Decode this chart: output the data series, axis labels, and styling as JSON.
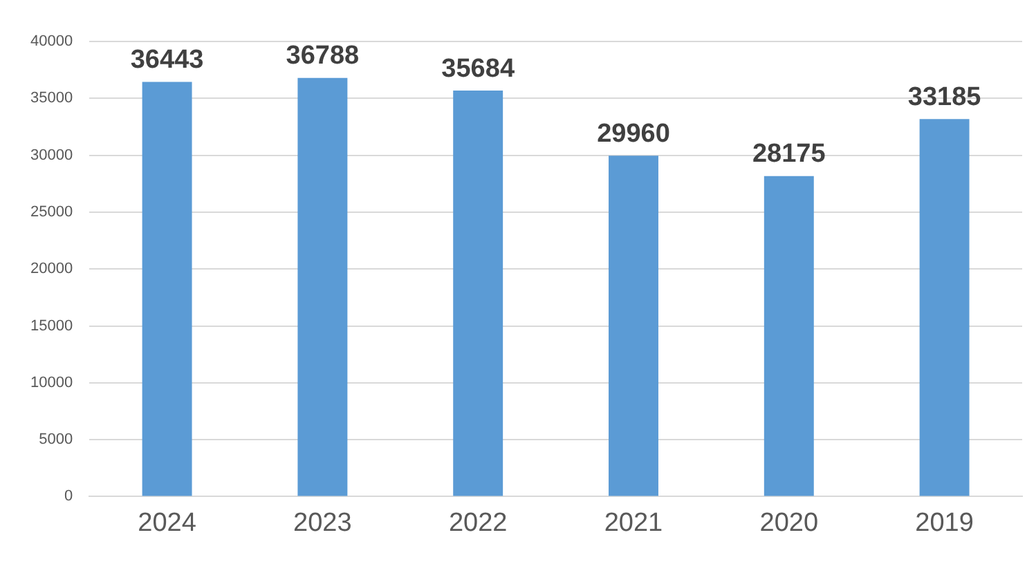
{
  "chart_data": {
    "type": "bar",
    "categories": [
      "2024",
      "2023",
      "2022",
      "2021",
      "2020",
      "2019"
    ],
    "values": [
      36443,
      36788,
      35684,
      29960,
      28175,
      33185
    ],
    "color": "#5b9bd5",
    "ylim": [
      0,
      40000
    ],
    "yticks": [
      0,
      5000,
      10000,
      15000,
      20000,
      25000,
      30000,
      35000,
      40000
    ],
    "grid": "y",
    "data_labels": true,
    "legend": false
  }
}
